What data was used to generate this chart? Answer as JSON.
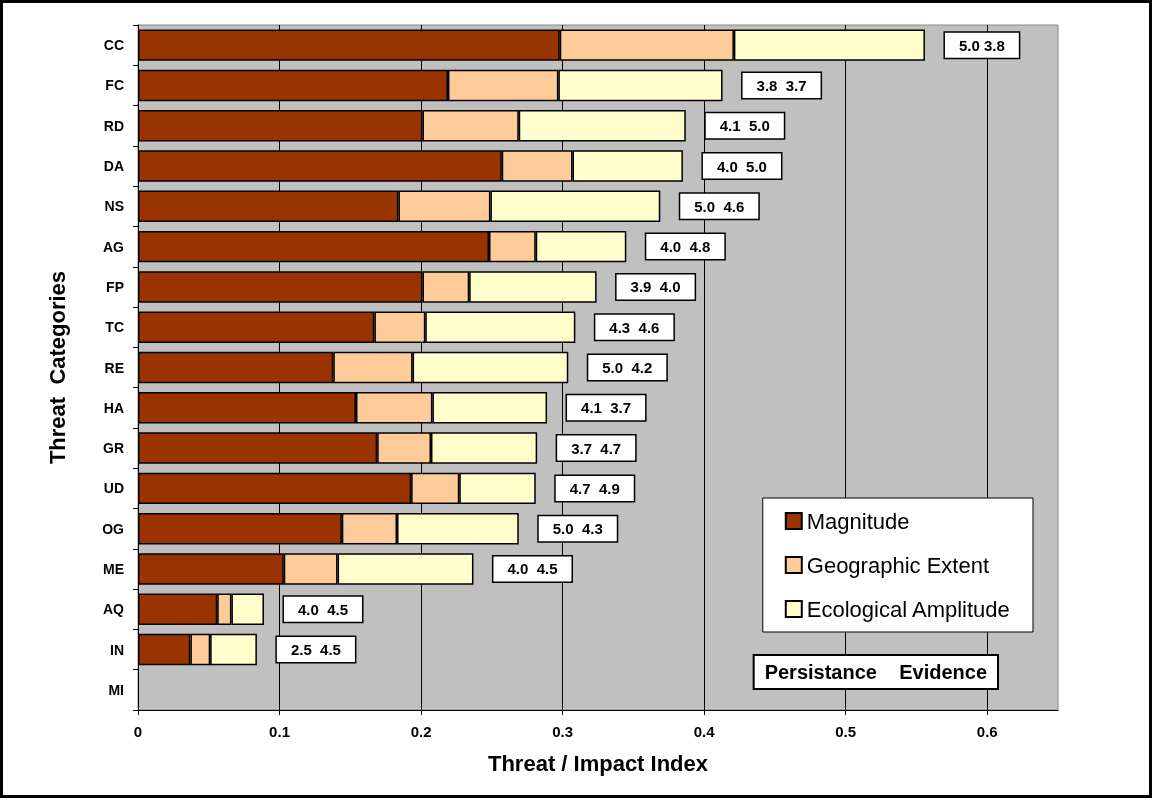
{
  "chart_data": {
    "type": "bar",
    "orientation": "horizontal",
    "stacked": true,
    "xlabel": "Threat / Impact Index",
    "ylabel": "Threat  Categories",
    "categories": [
      "CC",
      "FC",
      "RD",
      "DA",
      "NS",
      "AG",
      "FP",
      "TC",
      "RE",
      "HA",
      "GR",
      "UD",
      "OG",
      "ME",
      "AQ",
      "IN",
      "MI"
    ],
    "series": [
      {
        "name": "Magnitude",
        "color": "#993300",
        "values": [
          0.298,
          0.219,
          0.201,
          0.257,
          0.184,
          0.248,
          0.201,
          0.167,
          0.138,
          0.154,
          0.169,
          0.193,
          0.144,
          0.103,
          0.056,
          0.037,
          null
        ]
      },
      {
        "name": "Geographic Extent",
        "color": "#ffcc99",
        "values": [
          0.123,
          0.078,
          0.068,
          0.05,
          0.065,
          0.033,
          0.033,
          0.036,
          0.056,
          0.054,
          0.038,
          0.034,
          0.039,
          0.038,
          0.01,
          0.014,
          null
        ]
      },
      {
        "name": "Ecological Amplitude",
        "color": "#ffffcc",
        "values": [
          0.135,
          0.116,
          0.118,
          0.078,
          0.12,
          0.064,
          0.09,
          0.106,
          0.11,
          0.081,
          0.075,
          0.054,
          0.086,
          0.096,
          0.023,
          0.033,
          null
        ]
      }
    ],
    "xlim": [
      0,
      0.65
    ],
    "xticks": [
      0,
      0.1,
      0.2,
      0.3,
      0.4,
      0.5,
      0.6
    ],
    "grid": "x",
    "legend": "bottom right",
    "annotations": [
      "5.0 3.8",
      "3.8  3.7",
      "4.1  5.0",
      "4.0  5.0",
      "5.0  4.6",
      "4.0  4.8",
      "3.9  4.0",
      "4.3  4.6",
      "5.0  4.2",
      "4.1  3.7",
      "3.7  4.7",
      "4.7  4.9",
      "5.0  4.3",
      "4.0  4.5",
      "4.0  4.5",
      "2.5  4.5",
      "Persistance    Evidence"
    ]
  }
}
